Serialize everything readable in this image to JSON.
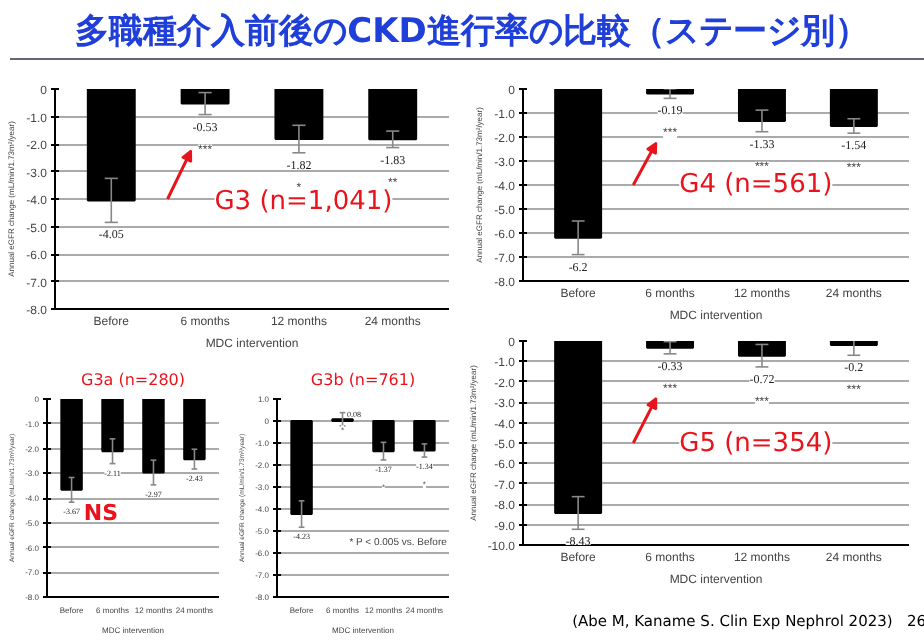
{
  "chart_data": [
    {
      "type": "bar",
      "title": "多職種介入前後のCKD進行率の比較（ステージ別）",
      "subtitle": "G3 (n=1,041)",
      "categories": [
        "Before",
        "6 months",
        "12 months",
        "24 months"
      ],
      "values": [
        -4.05,
        -0.53,
        -1.82,
        -1.83
      ],
      "errors": [
        0.8,
        0.4,
        0.5,
        0.3
      ],
      "color": "#000000",
      "data_labels": true,
      "xlabel": "MDC intervention",
      "ylabel": "Annual eGFR change (mL/min/1.73m²/year)",
      "ylim": [
        -8,
        0
      ],
      "yticks": [
        0,
        {
          "value": -1,
          "label": "-1.0"
        },
        {
          "value": -2,
          "label": "-2.0"
        },
        {
          "value": -3,
          "label": "-3.0"
        },
        {
          "value": -4,
          "label": "-4.0"
        },
        {
          "value": -5,
          "label": "-5.0"
        },
        {
          "value": -6,
          "label": "-6.0"
        },
        {
          "value": -7,
          "label": "-7.0"
        },
        {
          "value": -8,
          "label": "-8.0"
        }
      ],
      "grid": "y",
      "annotations": [
        "***",
        "*",
        "**"
      ]
    },
    {
      "type": "bar",
      "subtitle": "G4 (n=561)",
      "categories": [
        "Before",
        "6 months",
        "12 months",
        "24 months"
      ],
      "values": [
        -6.2,
        -0.19,
        -1.33,
        -1.54
      ],
      "errors": [
        0.7,
        0.2,
        0.45,
        0.3
      ],
      "color": "#000000",
      "data_labels": true,
      "xlabel": "MDC intervention",
      "ylabel": "Annual eGFR change (mL/min/1.73m²/year)",
      "ylim": [
        -8,
        0
      ],
      "yticks": [
        0,
        {
          "value": -1,
          "label": "-1.0"
        },
        {
          "value": -2,
          "label": "-2.0"
        },
        {
          "value": -3,
          "label": "-3.0"
        },
        {
          "value": -4,
          "label": "-4.0"
        },
        {
          "value": -5,
          "label": "-5.0"
        },
        {
          "value": -6,
          "label": "-6.0"
        },
        {
          "value": -7,
          "label": "-7.0"
        },
        {
          "value": -8,
          "label": "-8.0"
        }
      ],
      "grid": "y",
      "annotations": [
        "***",
        "***",
        "***"
      ]
    },
    {
      "type": "bar",
      "subtitle": "G3a (n=280)",
      "categories": [
        "Before",
        "6 months",
        "12 months",
        "24 months"
      ],
      "values": [
        -3.67,
        -2.11,
        -2.97,
        -2.43
      ],
      "errors": [
        0.5,
        0.5,
        0.5,
        0.4
      ],
      "color": "#000000",
      "data_labels": true,
      "xlabel": "MDC intervention",
      "ylabel": "Annual eGFR change (mL/min/1.73m²/year)",
      "ylim": [
        -8,
        0
      ],
      "yticks": [
        0,
        {
          "value": -1,
          "label": "-1.0"
        },
        {
          "value": -2,
          "label": "-2.0"
        },
        {
          "value": -3,
          "label": "-3.0"
        },
        {
          "value": -4,
          "label": "-4.0"
        },
        {
          "value": -5,
          "label": "-5.0"
        },
        {
          "value": -6,
          "label": "-6.0"
        },
        {
          "value": -7,
          "label": "-7.0"
        },
        {
          "value": -8,
          "label": "-8.0"
        }
      ],
      "grid": "y",
      "annotations": [
        "NS"
      ]
    },
    {
      "type": "bar",
      "subtitle": "G3b (n=761)",
      "categories": [
        "Before",
        "6 months",
        "12 months",
        "24 months"
      ],
      "values": [
        -4.23,
        0.08,
        -1.37,
        -1.34
      ],
      "errors": [
        0.6,
        0.3,
        0.4,
        0.3
      ],
      "color": "#000000",
      "data_labels": true,
      "xlabel": "MDC intervention",
      "ylabel": "Annual eGFR change (mL/min/1.73m²/year)",
      "ylim": [
        -8,
        1
      ],
      "yticks": [
        {
          "value": 1,
          "label": "1.0"
        },
        0,
        {
          "value": -1,
          "label": "-1.0"
        },
        {
          "value": -2,
          "label": "-2.0"
        },
        {
          "value": -3,
          "label": "-3.0"
        },
        {
          "value": -4,
          "label": "-4.0"
        },
        {
          "value": -5,
          "label": "-5.0"
        },
        {
          "value": -6,
          "label": "-6.0"
        },
        {
          "value": -7,
          "label": "-7.0"
        },
        {
          "value": -8,
          "label": "-8.0"
        }
      ],
      "grid": "y",
      "annotations": [
        "*",
        "*",
        "*",
        "* P < 0.005 vs. Before"
      ]
    },
    {
      "type": "bar",
      "subtitle": "G5 (n=354)",
      "categories": [
        "Before",
        "6 months",
        "12 months",
        "24 months"
      ],
      "values": [
        -8.43,
        -0.33,
        -0.72,
        -0.2
      ],
      "errors": [
        0.8,
        0.3,
        0.55,
        0.5
      ],
      "color": "#000000",
      "data_labels": true,
      "xlabel": "MDC intervention",
      "ylabel": "Annual eGFR change (mL/min/1.73m²/year)",
      "ylim": [
        -10,
        0
      ],
      "yticks": [
        0,
        {
          "value": -1,
          "label": "-1.0"
        },
        {
          "value": -2,
          "label": "-2.0"
        },
        {
          "value": -3,
          "label": "-3.0"
        },
        {
          "value": -4,
          "label": "-4.0"
        },
        {
          "value": -5,
          "label": "-5.0"
        },
        {
          "value": -6,
          "label": "-6.0"
        },
        {
          "value": -7,
          "label": "-7.0"
        },
        {
          "value": -8,
          "label": "-8.0"
        },
        {
          "value": -9,
          "label": "-9.0"
        },
        {
          "value": -10,
          "label": "-10.0"
        }
      ],
      "grid": "y",
      "annotations": [
        "***",
        "***",
        "***",
        "(Abe M, Kaname S. Clin Exp Nephrol 2023)",
        "26"
      ]
    }
  ]
}
